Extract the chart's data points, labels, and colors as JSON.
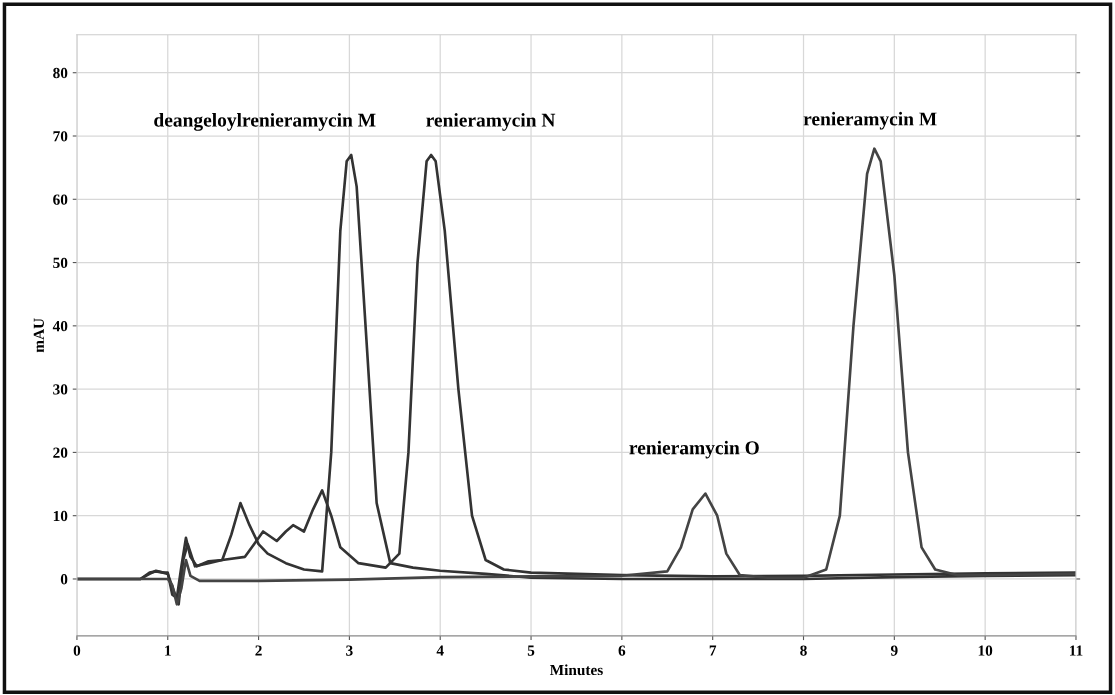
{
  "chart_data": {
    "type": "line",
    "xlabel": "Minutes",
    "ylabel": "mAU",
    "xlim": [
      0,
      11
    ],
    "ylim": [
      -9,
      86
    ],
    "xticks": [
      0,
      1,
      2,
      3,
      4,
      5,
      6,
      7,
      8,
      9,
      10,
      11
    ],
    "yticks": [
      0,
      10,
      20,
      30,
      40,
      50,
      60,
      70,
      80
    ],
    "grid": true,
    "marker": "none",
    "line_style": "solid",
    "series": [
      {
        "color": "#333333",
        "x": [
          0,
          0.7,
          0.8,
          0.87,
          0.95,
          1.0,
          1.05,
          1.1,
          1.15,
          1.2,
          1.25,
          1.32,
          1.45,
          1.6,
          1.7,
          1.8,
          1.9,
          2.0,
          2.1,
          2.3,
          2.5,
          2.7,
          2.8,
          2.9,
          2.97,
          3.02,
          3.08,
          3.2,
          3.3,
          3.45,
          3.7,
          4.0,
          4.5,
          5.0,
          6.0,
          7.0,
          8.0,
          9.0,
          10.0,
          11.0
        ],
        "values": [
          0,
          0,
          0.8,
          1.3,
          1.0,
          1.0,
          -2.5,
          -3.0,
          2.0,
          6.5,
          3.5,
          2.0,
          2.8,
          3.0,
          7.0,
          12.0,
          8.5,
          5.5,
          4.0,
          2.5,
          1.5,
          1.2,
          20,
          55,
          66,
          67,
          62,
          35,
          12,
          2.5,
          1.8,
          1.3,
          0.8,
          0.2,
          0.0,
          0.0,
          0.0,
          0.3,
          0.5,
          0.6
        ]
      },
      {
        "color": "#333333",
        "x": [
          0,
          0.7,
          0.8,
          0.87,
          0.95,
          1.0,
          1.07,
          1.12,
          1.17,
          1.22,
          1.3,
          1.45,
          1.6,
          1.85,
          1.95,
          2.05,
          2.2,
          2.3,
          2.38,
          2.5,
          2.6,
          2.7,
          2.8,
          2.9,
          3.1,
          3.4,
          3.55,
          3.65,
          3.75,
          3.85,
          3.9,
          3.95,
          4.05,
          4.2,
          4.35,
          4.5,
          4.7,
          5.0,
          6.0,
          7.0,
          8.0,
          9.0,
          10.0,
          11.0
        ],
        "values": [
          0,
          0,
          1.0,
          1.2,
          1.0,
          0.8,
          -2.0,
          -4.0,
          3.0,
          5.5,
          2.0,
          2.5,
          3.0,
          3.5,
          5.5,
          7.5,
          6.0,
          7.5,
          8.5,
          7.5,
          11.0,
          14.0,
          10.0,
          5.0,
          2.5,
          1.8,
          4.0,
          20,
          50,
          66,
          67,
          66,
          55,
          30,
          10,
          3.0,
          1.5,
          1.0,
          0.6,
          0.4,
          0.5,
          0.7,
          0.9,
          1.0
        ]
      },
      {
        "color": "#444444",
        "x": [
          0,
          1.0,
          1.05,
          1.1,
          1.15,
          1.2,
          1.25,
          1.35,
          2.0,
          3.0,
          4.0,
          5.0,
          6.0,
          6.5,
          6.65,
          6.78,
          6.92,
          7.05,
          7.15,
          7.3,
          7.6,
          8.0,
          8.25,
          8.4,
          8.55,
          8.7,
          8.78,
          8.85,
          9.0,
          9.15,
          9.3,
          9.45,
          9.7,
          10.0,
          11.0
        ],
        "values": [
          0,
          0,
          -1.0,
          -4.0,
          -1.5,
          3.0,
          0.5,
          -0.3,
          -0.3,
          -0.1,
          0.3,
          0.4,
          0.5,
          1.2,
          5.0,
          11.0,
          13.5,
          10.0,
          4.0,
          0.6,
          0.2,
          0.2,
          1.5,
          10,
          40,
          64,
          68,
          66,
          48,
          20,
          5,
          1.5,
          0.6,
          0.6,
          0.8
        ]
      }
    ],
    "annotations": [
      "deangeloylrenieramycin M",
      "renieramycin N",
      "renieramycin O",
      "renieramycin M"
    ]
  }
}
